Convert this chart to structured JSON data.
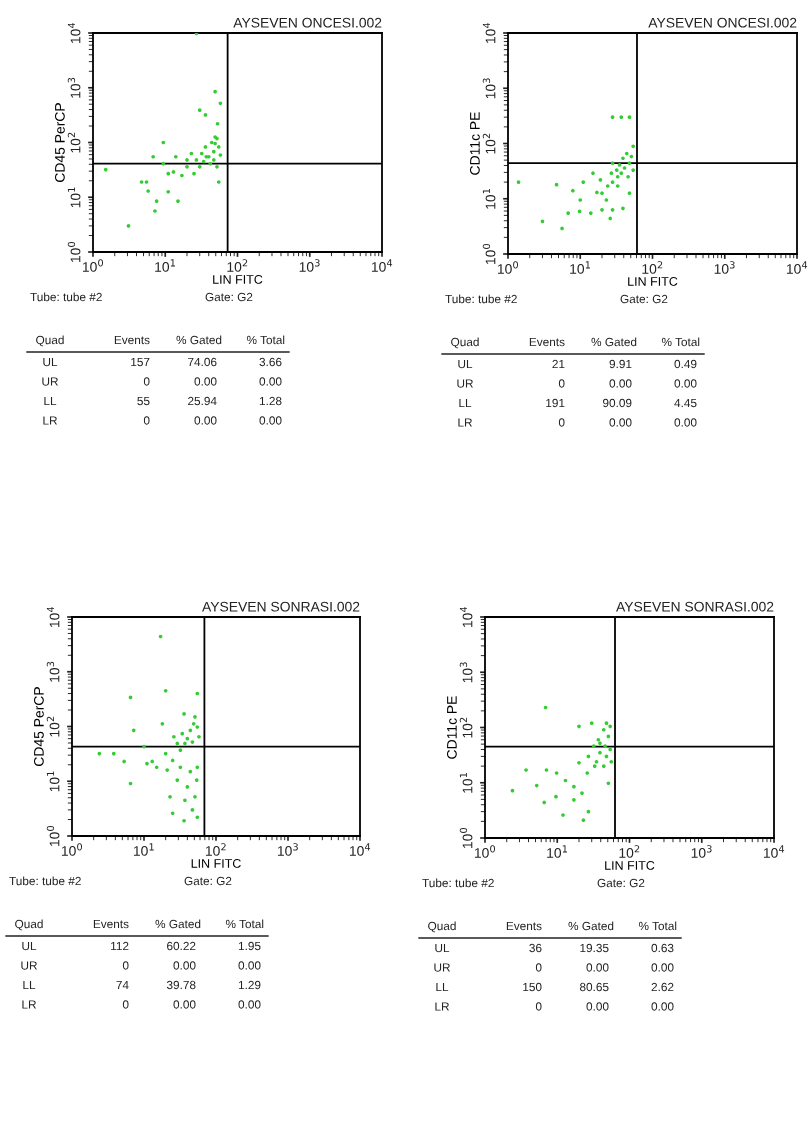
{
  "chart_data": [
    {
      "type": "scatter",
      "title": "AYSEVEN ONCESI.002",
      "xlabel": "LIN FITC",
      "ylabel": "CD45 PerCP",
      "log": "xy",
      "marker": "circle",
      "xlim": [
        1,
        10000
      ],
      "ylim": [
        1,
        10000
      ],
      "xticks": [
        {
          "value": 1,
          "label": "10$^{0}$"
        },
        {
          "value": 10,
          "label": "10$^{1}$"
        },
        {
          "value": 100,
          "label": "10$^{2}$"
        },
        {
          "value": 1000,
          "label": "10$^{3}$"
        },
        {
          "value": 10000,
          "label": "10$^{4}$"
        }
      ],
      "yticks": [
        {
          "value": 1,
          "label": "10$^{0}$"
        },
        {
          "value": 10,
          "label": "10$^{1}$"
        },
        {
          "value": 100,
          "label": "10$^{2}$"
        },
        {
          "value": 1000,
          "label": "10$^{3}$"
        },
        {
          "value": 10000,
          "label": "10$^{4}$"
        }
      ],
      "ref_lines": [
        {
          "axis": "x",
          "value": 73,
          "color": "#000000"
        },
        {
          "axis": "y",
          "value": 41,
          "color": "#000000"
        }
      ],
      "series": [
        {
          "color": "#33cc33",
          "x": [
            1.5,
            3.1,
            7.2,
            7.6,
            15,
            11,
            5.5,
            4.7,
            5.8,
            9.4,
            6.8,
            9.4,
            13,
            17,
            20,
            23,
            25,
            30,
            32,
            36,
            40,
            42,
            47,
            49,
            52,
            55,
            58,
            47,
            52,
            55,
            37,
            30,
            36,
            58,
            49,
            27,
            53,
            49,
            44,
            34,
            27,
            20,
            14,
            11
          ],
          "values": [
            32,
            3.0,
            5.6,
            8.5,
            8.5,
            12.6,
            19,
            19,
            13,
            100,
            55,
            41,
            29,
            25,
            48,
            63,
            27,
            36,
            63,
            83,
            55,
            41,
            68,
            96,
            118,
            83,
            59,
            48,
            36,
            19,
            55,
            390,
            320,
            520,
            850,
            9800,
            220,
            126,
            100,
            45,
            48,
            36,
            55,
            27
          ]
        }
      ],
      "annotations": [
        "Tube: tube #2",
        "Gate: G2",
        "Quad",
        "Events",
        "% Gated",
        "% Total",
        "UL",
        "157",
        "74.06",
        "3.66",
        "UR",
        "0",
        "0.00",
        "0.00",
        "LL",
        "55",
        "25.94",
        "1.28",
        "LR",
        "0",
        "0.00",
        "0.00"
      ]
    },
    {
      "type": "scatter",
      "title": "AYSEVEN ONCESI.002",
      "xlabel": "LIN FITC",
      "ylabel": "CD11c PE",
      "log": "xy",
      "marker": "circle",
      "xlim": [
        1,
        10000
      ],
      "ylim": [
        1,
        10000
      ],
      "xticks": [
        {
          "value": 1,
          "label": "10$^{0}$"
        },
        {
          "value": 10,
          "label": "10$^{1}$"
        },
        {
          "value": 100,
          "label": "10$^{2}$"
        },
        {
          "value": 1000,
          "label": "10$^{3}$"
        },
        {
          "value": 10000,
          "label": "10$^{4}$"
        }
      ],
      "yticks": [
        {
          "value": 1,
          "label": "10$^{0}$"
        },
        {
          "value": 10,
          "label": "10$^{1}$"
        },
        {
          "value": 100,
          "label": "10$^{2}$"
        },
        {
          "value": 1000,
          "label": "10$^{3}$"
        },
        {
          "value": 10000,
          "label": "10$^{4}$"
        }
      ],
      "ref_lines": [
        {
          "axis": "x",
          "value": 61,
          "color": "#000000"
        },
        {
          "axis": "y",
          "value": 44,
          "color": "#000000"
        }
      ],
      "series": [
        {
          "color": "#33cc33",
          "x": [
            1.4,
            3.0,
            5.6,
            4.7,
            6.8,
            9.8,
            10,
            7.9,
            11,
            15,
            14,
            20,
            26,
            28,
            39,
            28,
            37,
            48,
            19,
            20,
            24,
            27,
            28,
            32,
            33,
            35,
            37,
            39,
            41,
            44,
            48,
            51,
            54,
            54,
            48,
            33,
            23,
            17,
            28,
            46
          ],
          "values": [
            20,
            3.9,
            2.9,
            18,
            5.5,
            5.9,
            9.5,
            14,
            20,
            29,
            5.5,
            6.3,
            4.4,
            6.3,
            6.7,
            300,
            300,
            300,
            22,
            12.6,
            17,
            29,
            20,
            33,
            25,
            41,
            29,
            54,
            36,
            66,
            44,
            58,
            89,
            33,
            12.6,
            17,
            9.5,
            13,
            44,
            25
          ]
        }
      ],
      "annotations": [
        "Tube: tube #2",
        "Gate: G2",
        "Quad",
        "Events",
        "% Gated",
        "% Total",
        "UL",
        "21",
        "9.91",
        "0.49",
        "UR",
        "0",
        "0.00",
        "0.00",
        "LL",
        "191",
        "90.09",
        "4.45",
        "LR",
        "0",
        "0.00",
        "0.00"
      ]
    },
    {
      "type": "scatter",
      "title": "AYSEVEN SONRASI.002",
      "xlabel": "LIN FITC",
      "ylabel": "CD45 PerCP",
      "log": "xy",
      "marker": "circle",
      "xlim": [
        1,
        10000
      ],
      "ylim": [
        1,
        10000
      ],
      "xticks": [
        {
          "value": 1,
          "label": "10$^{0}$"
        },
        {
          "value": 10,
          "label": "10$^{1}$"
        },
        {
          "value": 100,
          "label": "10$^{2}$"
        },
        {
          "value": 1000,
          "label": "10$^{3}$"
        },
        {
          "value": 10000,
          "label": "10$^{4}$"
        }
      ],
      "yticks": [
        {
          "value": 1,
          "label": "10$^{0}$"
        },
        {
          "value": 10,
          "label": "10$^{1}$"
        },
        {
          "value": 100,
          "label": "10$^{2}$"
        },
        {
          "value": 1000,
          "label": "10$^{3}$"
        },
        {
          "value": 10000,
          "label": "10$^{4}$"
        }
      ],
      "ref_lines": [
        {
          "axis": "x",
          "value": 69,
          "color": "#000000"
        },
        {
          "axis": "y",
          "value": 43,
          "color": "#000000"
        }
      ],
      "series": [
        {
          "color": "#33cc33",
          "x": [
            17,
            6.5,
            20,
            55,
            7.2,
            2.4,
            3.8,
            5.3,
            6.5,
            10,
            11,
            13,
            15,
            20,
            21,
            18,
            23,
            25,
            29,
            32,
            36,
            37,
            40,
            44,
            47,
            51,
            55,
            55,
            54,
            26,
            29,
            34,
            36,
            40,
            44,
            49,
            55,
            58,
            47,
            37,
            51,
            32,
            25
          ],
          "values": [
            4400,
            340,
            450,
            400,
            85,
            32,
            32,
            23,
            9.1,
            43,
            21,
            23,
            18,
            32,
            16,
            112,
            5.2,
            2.6,
            10.5,
            18,
            1.9,
            4.5,
            7.9,
            15,
            3.0,
            5.2,
            2.2,
            18,
            10.5,
            65,
            49,
            74,
            170,
            60,
            85,
            112,
            98,
            65,
            52,
            49,
            150,
            37,
            24
          ]
        }
      ],
      "annotations": [
        "Tube: tube #2",
        "Gate: G2",
        "Quad",
        "Events",
        "% Gated",
        "% Total",
        "UL",
        "112",
        "60.22",
        "1.95",
        "UR",
        "0",
        "0.00",
        "0.00",
        "LL",
        "74",
        "39.78",
        "1.29",
        "LR",
        "0",
        "0.00",
        "0.00"
      ]
    },
    {
      "type": "scatter",
      "title": "AYSEVEN SONRASI.002",
      "xlabel": "LIN FITC",
      "ylabel": "CD11c PE",
      "log": "xy",
      "marker": "circle",
      "xlim": [
        1,
        10000
      ],
      "ylim": [
        1,
        10000
      ],
      "xticks": [
        {
          "value": 1,
          "label": "10$^{0}$"
        },
        {
          "value": 10,
          "label": "10$^{1}$"
        },
        {
          "value": 100,
          "label": "10$^{2}$"
        },
        {
          "value": 1000,
          "label": "10$^{3}$"
        },
        {
          "value": 10000,
          "label": "10$^{4}$"
        }
      ],
      "yticks": [
        {
          "value": 1,
          "label": "10$^{0}$"
        },
        {
          "value": 10,
          "label": "10$^{1}$"
        },
        {
          "value": 100,
          "label": "10$^{2}$"
        },
        {
          "value": 1000,
          "label": "10$^{3}$"
        },
        {
          "value": 10000,
          "label": "10$^{4}$"
        }
      ],
      "ref_lines": [
        {
          "axis": "x",
          "value": 63,
          "color": "#000000"
        },
        {
          "axis": "y",
          "value": 45,
          "color": "#000000"
        }
      ],
      "series": [
        {
          "color": "#33cc33",
          "x": [
            6.9,
            2.4,
            3.7,
            5.2,
            6.6,
            7.1,
            9.6,
            9.8,
            12,
            13,
            17,
            17,
            20,
            23,
            22,
            27,
            26,
            27,
            20,
            30,
            32,
            35,
            37,
            39,
            44,
            46,
            48,
            48,
            51,
            54,
            56,
            54,
            44,
            51,
            39,
            33
          ],
          "values": [
            230,
            7.2,
            17,
            8.9,
            4.4,
            17,
            5.6,
            15,
            2.6,
            11,
            4.9,
            8.5,
            23,
            2.1,
            6.5,
            3.0,
            15,
            30,
            105,
            120,
            46,
            24,
            60,
            35,
            91,
            46,
            120,
            30,
            69,
            40,
            24,
            105,
            20,
            9.8,
            52,
            20
          ]
        }
      ],
      "annotations": [
        "Tube: tube #2",
        "Gate: G2",
        "Quad",
        "Events",
        "% Gated",
        "% Total",
        "UL",
        "36",
        "19.35",
        "0.63",
        "UR",
        "0",
        "0.00",
        "0.00",
        "LL",
        "150",
        "80.65",
        "2.62",
        "LR",
        "0",
        "0.00",
        "0.00"
      ]
    }
  ]
}
